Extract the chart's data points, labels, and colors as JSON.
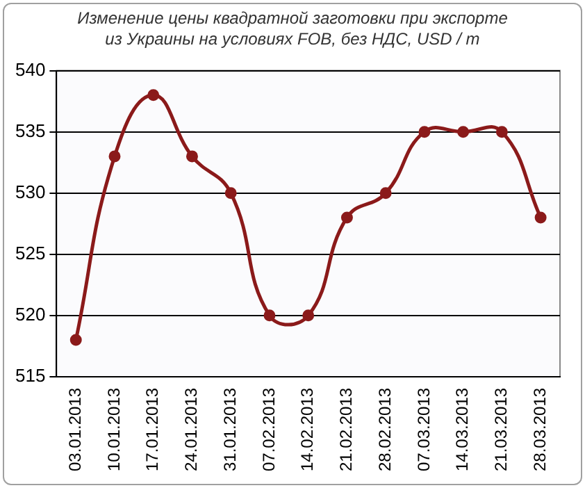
{
  "chart_data": {
    "type": "line",
    "title": "Изменение цены квадратной заготовки при экспорте\nиз Украины на условиях FOB, без НДС, USD / т",
    "categories": [
      "03.01.2013",
      "10.01.2013",
      "17.01.2013",
      "24.01.2013",
      "31.01.2013",
      "07.02.2013",
      "14.02.2013",
      "21.02.2013",
      "28.02.2013",
      "07.03.2013",
      "14.03.2013",
      "21.03.2013",
      "28.03.2013"
    ],
    "series": [
      {
        "color": "#8b1a1a",
        "values": [
          518,
          533,
          538,
          533,
          530,
          520,
          520,
          528,
          530,
          535,
          535,
          535,
          528
        ]
      }
    ],
    "ylim": [
      515,
      540
    ],
    "yticks": [
      515,
      520,
      525,
      530,
      535,
      540
    ],
    "grid": "y",
    "marker": "circle",
    "line_style": "solid",
    "legend": false
  }
}
